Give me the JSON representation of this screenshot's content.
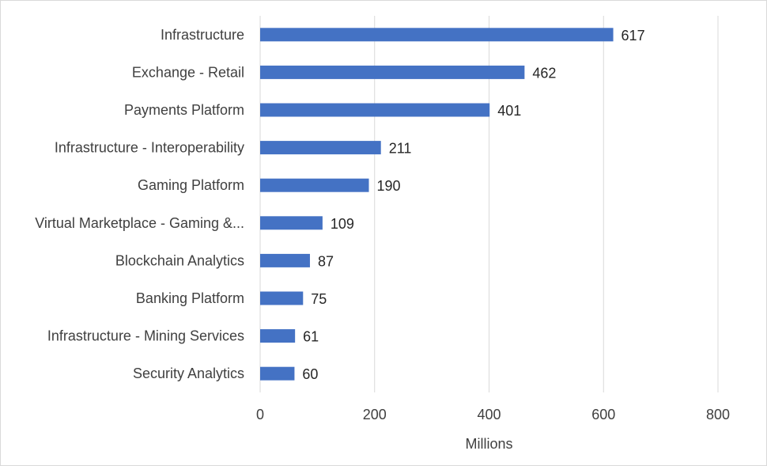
{
  "chart_data": {
    "type": "bar",
    "orientation": "horizontal",
    "categories": [
      "Infrastructure",
      "Exchange - Retail",
      "Payments Platform",
      "Infrastructure - Interoperability",
      "Gaming Platform",
      "Virtual Marketplace - Gaming &...",
      "Blockchain Analytics",
      "Banking Platform",
      "Infrastructure - Mining Services",
      "Security Analytics"
    ],
    "values": [
      617,
      462,
      401,
      211,
      190,
      109,
      87,
      75,
      61,
      60
    ],
    "xlabel": "Millions",
    "xlim": [
      0,
      800
    ],
    "xticks": [
      0,
      200,
      400,
      600,
      800
    ],
    "grid": true,
    "legend": "none",
    "colors": {
      "bar": "#4472C4",
      "grid": "#d9d9d9"
    }
  }
}
